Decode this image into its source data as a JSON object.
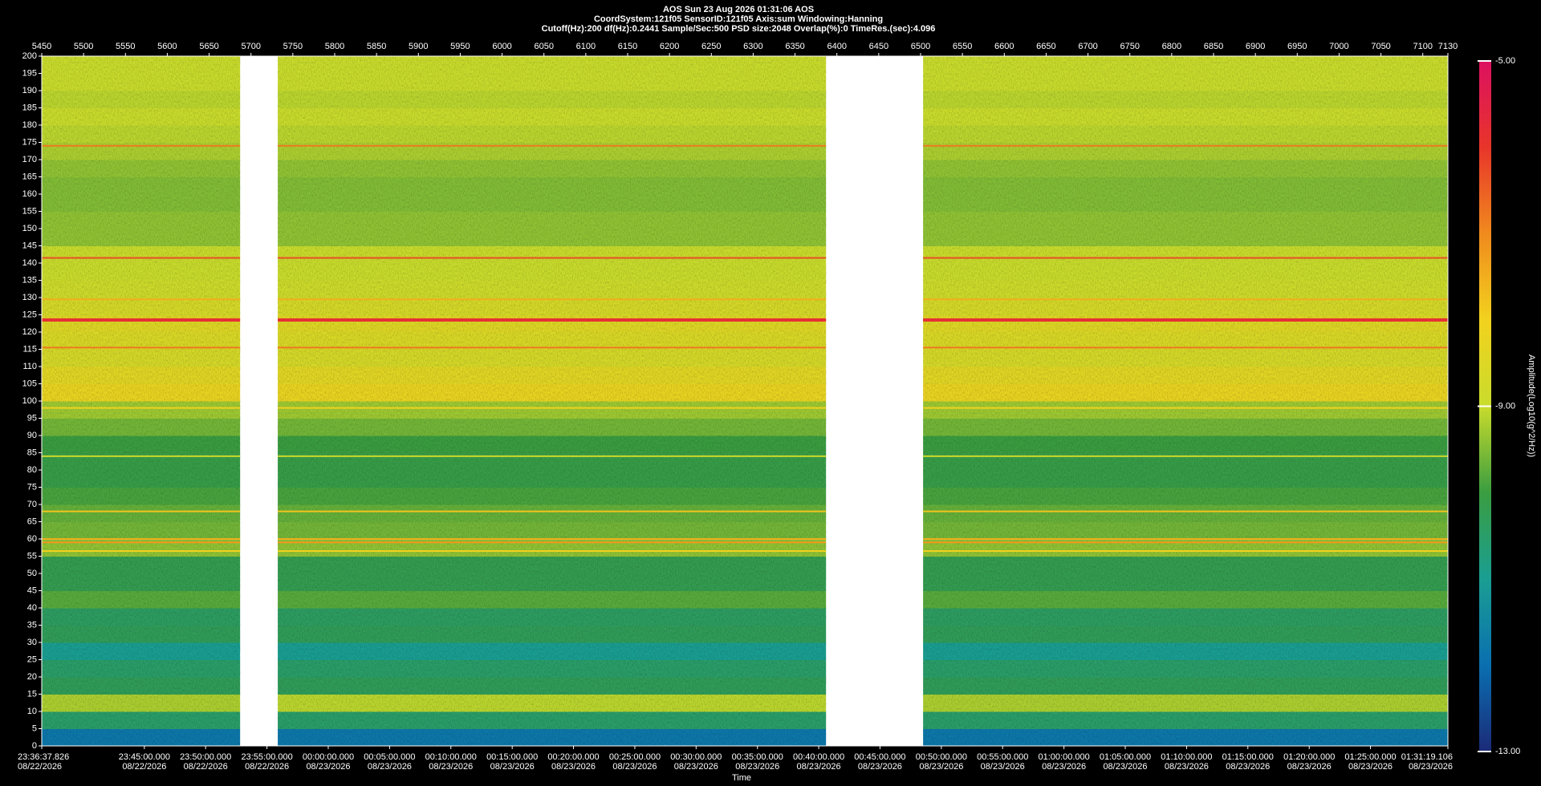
{
  "chart_data": {
    "type": "spectrogram",
    "title": "AOS  Sun 23 Aug 2026 01:31:06  AOS",
    "subtitles": [
      "CoordSystem:121f05   SensorID:121f05   Axis:sum   Windowing:Hanning",
      "Cutoff(Hz):200      df(Hz):0.2441      Sample/Sec:500      PSD size:2048      Overlap(%):0      TimeRes.(sec):4.096"
    ],
    "x_label": "Time",
    "colorbar_label": "Amplitude(Log10(g^2/Hz))",
    "xlim": [
      5450,
      7130
    ],
    "xticks": [
      5450,
      5500,
      5550,
      5600,
      5650,
      5700,
      5750,
      5800,
      5850,
      5900,
      5950,
      6000,
      6050,
      6100,
      6150,
      6200,
      6250,
      6300,
      6350,
      6400,
      6450,
      6500,
      6550,
      6600,
      6650,
      6700,
      6750,
      6800,
      6850,
      6900,
      6950,
      7000,
      7050,
      7100,
      7130
    ],
    "time_ticks": [
      {
        "value": 5450,
        "label": "23:36:37.826",
        "date": "08/22/2026"
      },
      {
        "value": 5572.6,
        "label": "23:45:00.000",
        "date": "08/22/2026"
      },
      {
        "value": 5645.8,
        "label": "23:50:00.000",
        "date": "08/22/2026"
      },
      {
        "value": 5719.1,
        "label": "23:55:00.000",
        "date": "08/22/2026"
      },
      {
        "value": 5792.3,
        "label": "00:00:00.000",
        "date": "08/23/2026"
      },
      {
        "value": 5865.6,
        "label": "00:05:00.000",
        "date": "08/23/2026"
      },
      {
        "value": 5938.8,
        "label": "00:10:00.000",
        "date": "08/23/2026"
      },
      {
        "value": 6012.1,
        "label": "00:15:00.000",
        "date": "08/23/2026"
      },
      {
        "value": 6085.3,
        "label": "00:20:00.000",
        "date": "08/23/2026"
      },
      {
        "value": 6158.6,
        "label": "00:25:00.000",
        "date": "08/23/2026"
      },
      {
        "value": 6231.8,
        "label": "00:30:00.000",
        "date": "08/23/2026"
      },
      {
        "value": 6305.1,
        "label": "00:35:00.000",
        "date": "08/23/2026"
      },
      {
        "value": 6378.3,
        "label": "00:40:00.000",
        "date": "08/23/2026"
      },
      {
        "value": 6451.5,
        "label": "00:45:00.000",
        "date": "08/23/2026"
      },
      {
        "value": 6524.8,
        "label": "00:50:00.000",
        "date": "08/23/2026"
      },
      {
        "value": 6598.0,
        "label": "00:55:00.000",
        "date": "08/23/2026"
      },
      {
        "value": 6671.3,
        "label": "01:00:00.000",
        "date": "08/23/2026"
      },
      {
        "value": 6744.5,
        "label": "01:05:00.000",
        "date": "08/23/2026"
      },
      {
        "value": 6817.8,
        "label": "01:10:00.000",
        "date": "08/23/2026"
      },
      {
        "value": 6891.0,
        "label": "01:15:00.000",
        "date": "08/23/2026"
      },
      {
        "value": 6964.3,
        "label": "01:20:00.000",
        "date": "08/23/2026"
      },
      {
        "value": 7037.5,
        "label": "01:25:00.000",
        "date": "08/23/2026"
      },
      {
        "value": 7130,
        "label": "01:31:19.106",
        "date": "08/23/2026"
      }
    ],
    "ylim": [
      0,
      200
    ],
    "yticks": [
      0,
      5,
      10,
      15,
      20,
      25,
      30,
      35,
      40,
      45,
      50,
      55,
      60,
      65,
      70,
      75,
      80,
      85,
      90,
      95,
      100,
      105,
      110,
      115,
      120,
      125,
      130,
      135,
      140,
      145,
      150,
      155,
      160,
      165,
      170,
      175,
      180,
      185,
      190,
      195,
      200
    ],
    "x_bins": [
      5450,
      5687,
      5732,
      6387,
      6503,
      7130
    ],
    "z": [
      [
        -11.8,
        null,
        -11.8,
        null,
        -11.8
      ],
      [
        -10.5,
        null,
        -10.5,
        null,
        -10.5
      ],
      [
        -9.2,
        null,
        -9.1,
        null,
        -9.2
      ],
      [
        -10.3,
        null,
        -10.3,
        null,
        -10.3
      ],
      [
        -10.5,
        null,
        -10.5,
        null,
        -10.5
      ],
      [
        -11.0,
        null,
        -11.0,
        null,
        -11.0
      ],
      [
        -10.3,
        null,
        -10.3,
        null,
        -10.3
      ],
      [
        -10.4,
        null,
        -10.4,
        null,
        -10.4
      ],
      [
        -9.8,
        null,
        -9.8,
        null,
        -9.8
      ],
      [
        -10.2,
        null,
        -10.2,
        null,
        -10.2
      ],
      [
        -10.2,
        null,
        -10.2,
        null,
        -10.2
      ],
      [
        -9.4,
        null,
        -9.4,
        null,
        -9.4
      ],
      [
        -9.6,
        null,
        -9.6,
        null,
        -9.6
      ],
      [
        -9.7,
        null,
        -9.7,
        null,
        -9.7
      ],
      [
        -9.9,
        null,
        -9.9,
        null,
        -9.9
      ],
      [
        -10.1,
        null,
        -10.1,
        null,
        -10.1
      ],
      [
        -10.1,
        null,
        -10.1,
        null,
        -10.1
      ],
      [
        -10.0,
        null,
        -10.0,
        null,
        -10.0
      ],
      [
        -9.6,
        null,
        -9.6,
        null,
        -9.6
      ],
      [
        -9.3,
        null,
        -9.3,
        null,
        -9.3
      ],
      [
        -8.2,
        null,
        -8.2,
        null,
        -8.2
      ],
      [
        -8.4,
        null,
        -8.4,
        null,
        -8.4
      ],
      [
        -8.7,
        null,
        -8.7,
        null,
        -8.7
      ],
      [
        -8.6,
        null,
        -8.6,
        null,
        -8.6
      ],
      [
        -8.5,
        null,
        -8.5,
        null,
        -8.5
      ],
      [
        -8.7,
        null,
        -8.7,
        null,
        -8.7
      ],
      [
        -8.9,
        null,
        -8.9,
        null,
        -8.9
      ],
      [
        -9.0,
        null,
        -9.0,
        null,
        -9.0
      ],
      [
        -9.0,
        null,
        -9.0,
        null,
        -9.0
      ],
      [
        -9.4,
        null,
        -9.4,
        null,
        -9.4
      ],
      [
        -9.4,
        null,
        -9.4,
        null,
        -9.4
      ],
      [
        -9.5,
        null,
        -9.5,
        null,
        -9.5
      ],
      [
        -9.5,
        null,
        -9.5,
        null,
        -9.5
      ],
      [
        -9.4,
        null,
        -9.4,
        null,
        -9.4
      ],
      [
        -9.2,
        null,
        -9.2,
        null,
        -9.2
      ],
      [
        -9.1,
        null,
        -9.1,
        null,
        -9.1
      ],
      [
        -9.0,
        null,
        -9.0,
        null,
        -9.0
      ],
      [
        -9.1,
        null,
        -9.1,
        null,
        -9.1
      ],
      [
        -9.0,
        null,
        -9.0,
        null,
        -9.0
      ],
      [
        -9.0,
        null,
        -9.0,
        null,
        -9.0
      ]
    ],
    "lines": [
      {
        "freq": 174,
        "value": -6.8
      },
      {
        "freq": 141.5,
        "value": -6.3
      },
      {
        "freq": 129.5,
        "value": -7.5
      },
      {
        "freq": 123.5,
        "value": -5.8
      },
      {
        "freq": 115.5,
        "value": -6.8
      },
      {
        "freq": 98,
        "value": -8.0
      },
      {
        "freq": 84,
        "value": -8.8
      },
      {
        "freq": 68,
        "value": -7.8
      },
      {
        "freq": 60,
        "value": -7.5
      },
      {
        "freq": 59,
        "value": -7.2
      },
      {
        "freq": 56.5,
        "value": -8.0
      }
    ],
    "zlim": [
      -13,
      -5
    ],
    "zticks": [
      {
        "value": -5,
        "label": "-5.00"
      },
      {
        "value": -9,
        "label": "-9.00"
      },
      {
        "value": -13,
        "label": "-13.00"
      }
    ],
    "colors": [
      "#1b2a78",
      "#0a6fb0",
      "#1a9e92",
      "#3a9d40",
      "#c9dc2c",
      "#f2d21e",
      "#f08a1e",
      "#e8352a",
      "#dc1060"
    ]
  }
}
